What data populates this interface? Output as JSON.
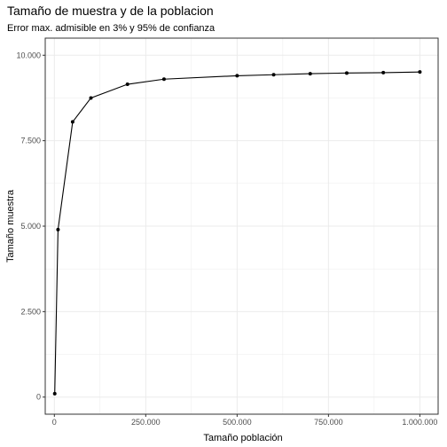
{
  "chart_data": {
    "type": "line",
    "title": "Tamaño de muestra y de la poblacion",
    "subtitle": "Error max. admisible en 3% y 95% de confianza",
    "xlabel": "Tamaño población",
    "ylabel": "Tamaño muestra",
    "xlim": [
      -25000,
      1050000
    ],
    "ylim": [
      -500,
      10500
    ],
    "x_ticks": [
      0,
      250000,
      500000,
      750000,
      1000000
    ],
    "x_tick_labels": [
      "0",
      "250.000",
      "500.000",
      "750.000",
      "1.000.000"
    ],
    "y_ticks": [
      0,
      2500,
      5000,
      7500,
      10000
    ],
    "y_tick_labels": [
      "0",
      "2.500",
      "5.000",
      "7.500",
      "10.000"
    ],
    "grid": true,
    "line_color": "#000000",
    "panel_border_color": "#333333",
    "grid_color": "#ebebeb",
    "x": [
      1000,
      10000,
      50000,
      100000,
      200000,
      300000,
      500000,
      600000,
      700000,
      800000,
      900000,
      1000000
    ],
    "y": [
      100,
      4900,
      8050,
      8750,
      9150,
      9300,
      9400,
      9430,
      9460,
      9480,
      9490,
      9510
    ]
  }
}
